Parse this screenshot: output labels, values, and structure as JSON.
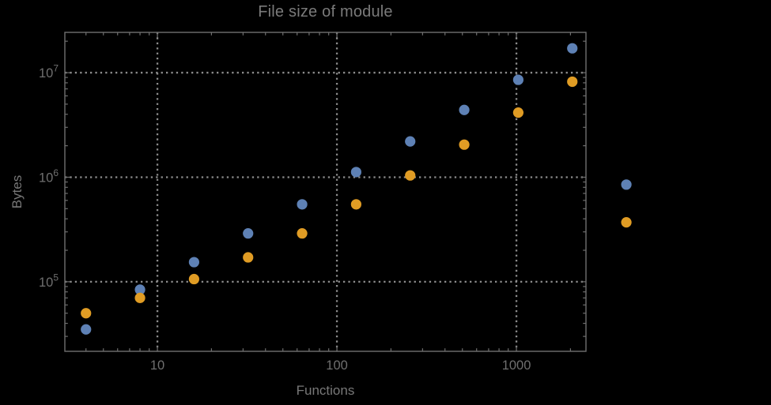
{
  "window": {
    "background_color": "#000000"
  },
  "chart": {
    "title": "File size of module",
    "xlabel": "Functions",
    "ylabel": "Bytes"
  },
  "chart_data": {
    "type": "scatter",
    "title": "File size of module",
    "xlabel": "Functions",
    "ylabel": "Bytes",
    "x_scale": "log",
    "y_scale": "log",
    "grid": true,
    "grid_style": "dotted",
    "legend": "none",
    "x": [
      4,
      8,
      16,
      32,
      64,
      128,
      256,
      512,
      1024,
      2048,
      4096
    ],
    "series": [
      {
        "name": "series-1-blue",
        "color": "#5e81b5",
        "values": [
          35000,
          84000,
          154000,
          290000,
          550000,
          1120000,
          2200000,
          4400000,
          8550000,
          17100000,
          850000
        ]
      },
      {
        "name": "series-2-orange",
        "color": "#e09c24",
        "values": [
          50000,
          70000,
          106000,
          171000,
          290000,
          550000,
          1040000,
          2050000,
          4150000,
          8200000,
          370000
        ]
      }
    ],
    "x_major_ticks": [
      10,
      100,
      1000
    ],
    "x_tick_labels": [
      "10",
      "100",
      "1000"
    ],
    "y_major_ticks": [
      100000,
      1000000,
      10000000
    ],
    "y_tick_base": "10",
    "y_tick_exponents": [
      "5",
      "6",
      "7"
    ],
    "y_tick_labels": [
      "10^5",
      "10^6",
      "10^7"
    ],
    "xlim": [
      3.05,
      2440
    ],
    "ylim": [
      21600,
      24300000
    ],
    "clip_points": false,
    "point_radius": 6.6,
    "frame_color": "#6f6f6f",
    "grid_color": "#8c8c8c",
    "tick_label_color": "#6f6f6f",
    "text_color": "#787878"
  }
}
